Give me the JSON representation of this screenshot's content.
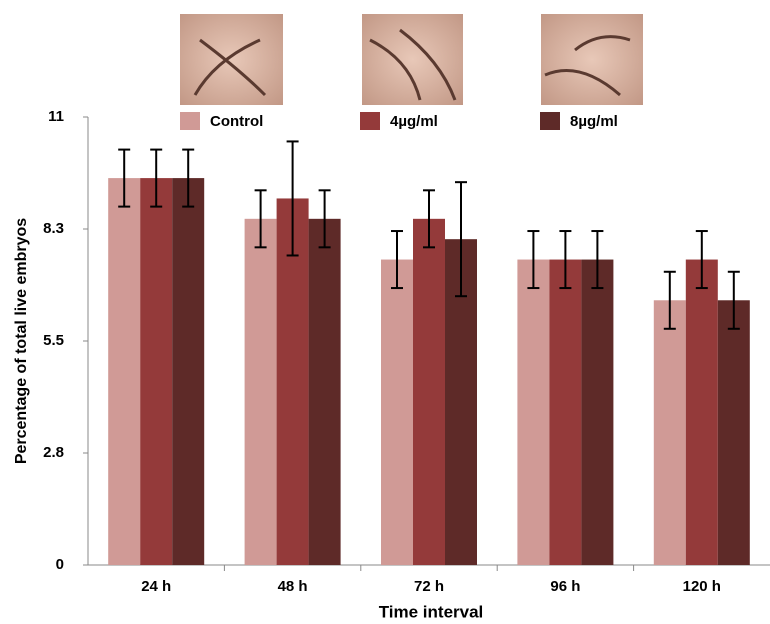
{
  "chart_data": {
    "type": "bar",
    "xlabel": "Time interval",
    "ylabel": "Percentage of total live embryos",
    "categories": [
      "24 h",
      "48 h",
      "72 h",
      "96 h",
      "120 h"
    ],
    "series": [
      {
        "name": "Control",
        "color": "#d09a96",
        "values": [
          9.5,
          8.5,
          7.5,
          7.5,
          6.5
        ],
        "errors": [
          0.7,
          0.7,
          0.7,
          0.7,
          0.7
        ]
      },
      {
        "name": "4µg/ml",
        "color": "#943a3a",
        "values": [
          9.5,
          9.0,
          8.5,
          7.5,
          7.5
        ],
        "errors": [
          0.7,
          1.4,
          0.7,
          0.7,
          0.7
        ]
      },
      {
        "name": "8µg/ml",
        "color": "#5e2a28",
        "values": [
          9.5,
          8.5,
          8.0,
          7.5,
          6.5
        ],
        "errors": [
          0.7,
          0.7,
          1.4,
          0.7,
          0.7
        ]
      }
    ],
    "ylim": [
      0,
      11
    ],
    "yticks": [
      0,
      {
        "value": 2.75,
        "label": "2.8"
      },
      5.5,
      {
        "value": 8.25,
        "label": "8.3"
      },
      11
    ]
  }
}
